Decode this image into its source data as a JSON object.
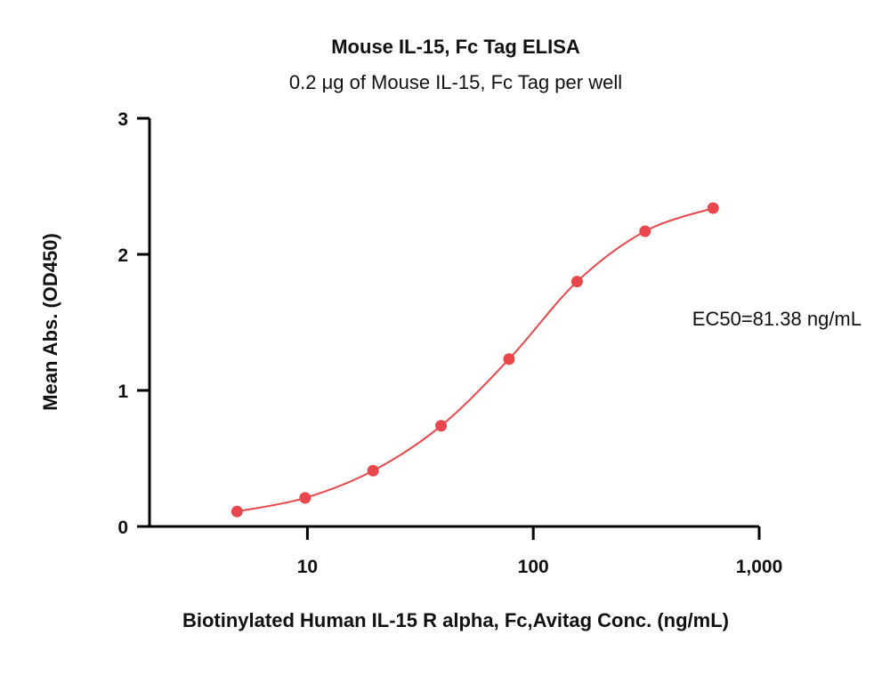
{
  "chart_data": {
    "type": "scatter",
    "title": "Mouse IL-15, Fc Tag ELISA",
    "subtitle": "0.2 μg of Mouse IL-15, Fc Tag per well",
    "xlabel": "Biotinylated Human IL-15 R alpha, Fc,Avitag Conc. (ng/mL)",
    "ylabel": "Mean Abs. (OD450)",
    "xscale": "log",
    "xlim": [
      2,
      1000
    ],
    "ylim": [
      0,
      3
    ],
    "x_ticks": [
      {
        "value": 10,
        "label": "10"
      },
      {
        "value": 100,
        "label": "100"
      },
      {
        "value": 1000,
        "label": "1,000"
      }
    ],
    "y_ticks": [
      {
        "value": 0,
        "label": "0"
      },
      {
        "value": 1,
        "label": "1"
      },
      {
        "value": 2,
        "label": "2"
      },
      {
        "value": 3,
        "label": "3"
      }
    ],
    "grid": false,
    "series": [
      {
        "color": "#e8474c",
        "x": [
          4.88,
          9.77,
          19.53,
          39.06,
          78.13,
          156.25,
          312.5,
          625
        ],
        "y": [
          0.11,
          0.21,
          0.41,
          0.74,
          1.23,
          1.8,
          2.17,
          2.34
        ]
      }
    ],
    "annotation": "EC50=81.38 ng/mL"
  }
}
